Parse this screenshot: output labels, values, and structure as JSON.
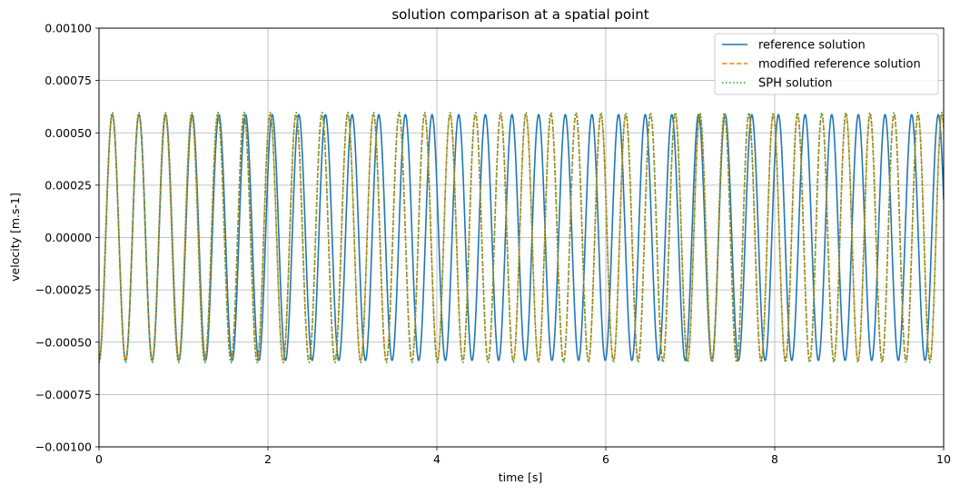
{
  "chart_data": {
    "type": "line",
    "title": "solution comparison at a spatial point",
    "xlabel": "time [s]",
    "ylabel": "velocity [m.s-1]",
    "xlim": [
      0,
      10
    ],
    "ylim": [
      -0.001,
      0.001
    ],
    "grid": true,
    "legend_position": "top-right",
    "x_ticks": [
      0,
      2,
      4,
      6,
      8,
      10
    ],
    "x_tick_labels": [
      "0",
      "2",
      "4",
      "6",
      "8",
      "10"
    ],
    "y_ticks": [
      -0.001,
      -0.00075,
      -0.0005,
      -0.00025,
      0,
      0.00025,
      0.0005,
      0.00075,
      0.001
    ],
    "y_tick_labels": [
      "−0.00100",
      "−0.00075",
      "−0.00050",
      "−0.00025",
      "0.00000",
      "0.00025",
      "0.00050",
      "0.00075",
      "0.00100"
    ],
    "series": [
      {
        "name": "reference solution",
        "color": "#1f77b4",
        "style": "solid",
        "model": "sine",
        "amplitude": 0.000587,
        "frequency": 3.17,
        "chirp": 0,
        "phase": -1.5708
      },
      {
        "name": "modified reference solution",
        "color": "#ff7f0e",
        "style": "dashed",
        "model": "chirped-sine",
        "amplitude": 0.000587,
        "frequency": 3.17,
        "chirp": 0.0375,
        "phase": -1.5708
      },
      {
        "name": "SPH solution",
        "color": "#2ca02c",
        "style": "dotted",
        "model": "chirped-sine",
        "amplitude": 0.000597,
        "frequency": 3.17,
        "chirp": 0.0375,
        "phase": -1.5708
      }
    ]
  }
}
